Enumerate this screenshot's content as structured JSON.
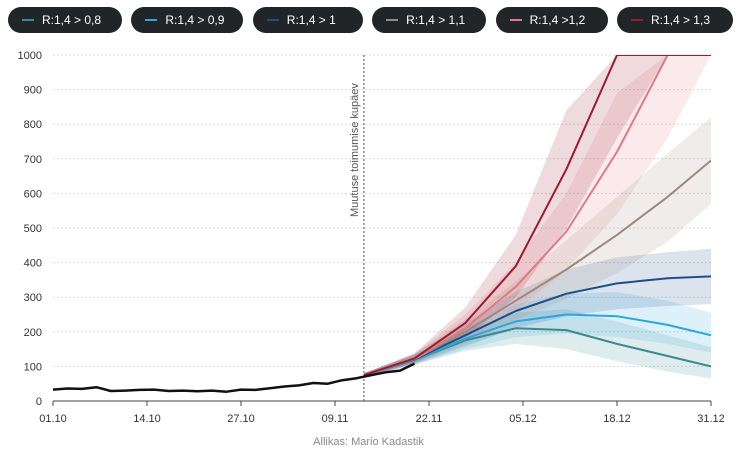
{
  "chart_data": {
    "type": "line",
    "x_ticks": [
      "01.10",
      "14.10",
      "27.10",
      "09.11",
      "22.11",
      "05.12",
      "18.12",
      "31.12"
    ],
    "y_ticks": [
      0,
      100,
      200,
      300,
      400,
      500,
      600,
      700,
      800,
      900,
      1000
    ],
    "ylim": [
      0,
      1000
    ],
    "xlim": [
      "2020-10-01",
      "2020-12-31"
    ],
    "grid": true,
    "legend_placement": "top",
    "annotation": {
      "label": "Muutuse toimumise kupäev",
      "x": "2020-11-13"
    },
    "source": "Allikas: Mario Kadastik",
    "observed": {
      "name": "",
      "color": "#111111",
      "x": [
        "2020-10-01",
        "2020-10-03",
        "2020-10-05",
        "2020-10-07",
        "2020-10-09",
        "2020-10-11",
        "2020-10-13",
        "2020-10-15",
        "2020-10-17",
        "2020-10-19",
        "2020-10-21",
        "2020-10-23",
        "2020-10-25",
        "2020-10-27",
        "2020-10-29",
        "2020-10-31",
        "2020-11-02",
        "2020-11-04",
        "2020-11-06",
        "2020-11-08",
        "2020-11-10",
        "2020-11-12",
        "2020-11-14",
        "2020-11-16",
        "2020-11-18",
        "2020-11-20"
      ],
      "y": [
        33,
        36,
        35,
        40,
        29,
        30,
        32,
        33,
        29,
        30,
        28,
        30,
        27,
        33,
        32,
        37,
        42,
        45,
        52,
        50,
        60,
        66,
        75,
        83,
        88,
        108
      ]
    },
    "series": [
      {
        "name": "R:1,4 > 0,8",
        "color": "#3a8a8e",
        "x": [
          "2020-11-13",
          "2020-11-20",
          "2020-11-27",
          "2020-12-04",
          "2020-12-11",
          "2020-12-18",
          "2020-12-25",
          "2020-12-31"
        ],
        "y": [
          75,
          118,
          175,
          210,
          205,
          165,
          130,
          100
        ],
        "lo": [
          70,
          105,
          145,
          165,
          150,
          115,
          85,
          65
        ],
        "hi": [
          80,
          132,
          205,
          255,
          265,
          230,
          190,
          155
        ]
      },
      {
        "name": "R:1,4 > 0,9",
        "color": "#2aa7dd",
        "x": [
          "2020-11-13",
          "2020-11-20",
          "2020-11-27",
          "2020-12-04",
          "2020-12-11",
          "2020-12-18",
          "2020-12-25",
          "2020-12-31"
        ],
        "y": [
          75,
          118,
          180,
          230,
          250,
          245,
          220,
          190
        ],
        "lo": [
          70,
          105,
          150,
          185,
          195,
          185,
          165,
          140
        ],
        "hi": [
          80,
          132,
          210,
          280,
          310,
          315,
          290,
          255
        ]
      },
      {
        "name": "R:1,4 > 1",
        "color": "#1d4f8c",
        "x": [
          "2020-11-13",
          "2020-11-20",
          "2020-11-27",
          "2020-12-04",
          "2020-12-11",
          "2020-12-18",
          "2020-12-25",
          "2020-12-31"
        ],
        "y": [
          75,
          120,
          190,
          260,
          310,
          340,
          355,
          360
        ],
        "lo": [
          70,
          107,
          158,
          210,
          245,
          265,
          275,
          280
        ],
        "hi": [
          80,
          135,
          225,
          315,
          380,
          415,
          430,
          440
        ]
      },
      {
        "name": "R:1,4 > 1,1",
        "color": "#9b8a7c",
        "x": [
          "2020-11-13",
          "2020-11-20",
          "2020-11-27",
          "2020-12-04",
          "2020-12-11",
          "2020-12-18",
          "2020-12-25",
          "2020-12-31"
        ],
        "y": [
          75,
          121,
          200,
          290,
          380,
          480,
          590,
          695
        ],
        "lo": [
          70,
          108,
          165,
          235,
          295,
          370,
          460,
          570
        ],
        "hi": [
          80,
          136,
          235,
          345,
          465,
          590,
          715,
          820
        ]
      },
      {
        "name": "R:1,4 >1,2",
        "color": "#e07a85",
        "x": [
          "2020-11-13",
          "2020-11-20",
          "2020-11-27",
          "2020-12-04",
          "2020-12-11",
          "2020-12-18",
          "2020-12-25",
          "2020-12-31"
        ],
        "y": [
          75,
          122,
          210,
          330,
          490,
          720,
          1000,
          1000
        ],
        "lo": [
          70,
          109,
          172,
          260,
          380,
          540,
          760,
          1000
        ],
        "hi": [
          80,
          137,
          250,
          400,
          600,
          890,
          1000,
          1000
        ]
      },
      {
        "name": "R:1,4 > 1,3",
        "color": "#9c1b2d",
        "x": [
          "2020-11-13",
          "2020-11-20",
          "2020-11-27",
          "2020-12-04",
          "2020-12-11",
          "2020-12-18",
          "2020-12-25",
          "2020-12-31"
        ],
        "y": [
          75,
          123,
          225,
          390,
          670,
          1000,
          1000,
          1000
        ],
        "lo": [
          70,
          110,
          180,
          300,
          500,
          760,
          1000,
          1000
        ],
        "hi": [
          80,
          138,
          270,
          480,
          840,
          1000,
          1000,
          1000
        ]
      }
    ]
  }
}
